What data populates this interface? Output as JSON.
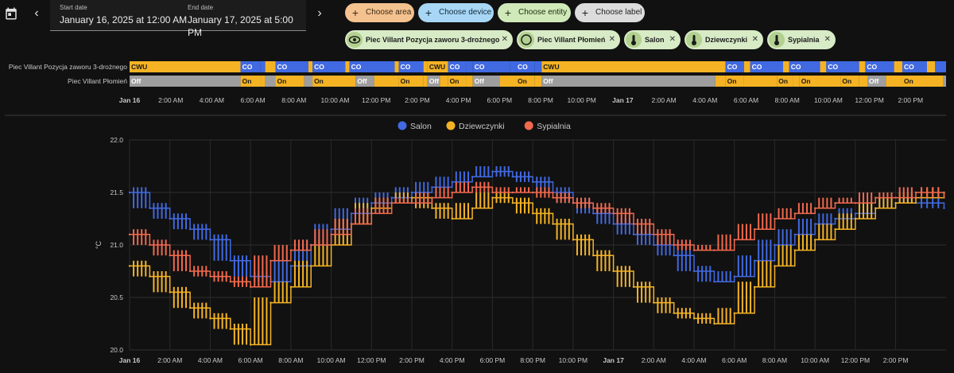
{
  "header": {
    "start_label": "Start date",
    "start_value": "January 16, 2025 at 12:00 AM",
    "end_label": "End date",
    "end_value": "January 17, 2025 at 5:00 PM"
  },
  "filters": {
    "area": "Choose area",
    "device": "Choose device",
    "entity": "Choose entity",
    "label": "Choose label"
  },
  "entities": [
    {
      "label": "Piec Villant Pozycja zaworu 3-drożnego",
      "icon": "eye-icon"
    },
    {
      "label": "Piec Villant Płomień",
      "icon": "circle-icon"
    },
    {
      "label": "Salon",
      "icon": "thermometer-icon"
    },
    {
      "label": "Dziewczynki",
      "icon": "thermometer-icon"
    },
    {
      "label": "Sypialnia",
      "icon": "thermometer-icon"
    }
  ],
  "colors": {
    "blue": "#4169e1",
    "yellow": "#f5b324",
    "red": "#f2694d",
    "gray": "#9e9e9e",
    "chip_area": "#f4c28f",
    "chip_device": "#a8d7f5",
    "chip_entity": "#cfe9b8",
    "chip_label": "#dcdcdc"
  },
  "timeline": {
    "time_labels": [
      "Jan 16",
      "2:00 AM",
      "4:00 AM",
      "6:00 AM",
      "8:00 AM",
      "10:00 AM",
      "12:00 PM",
      "2:00 PM",
      "4:00 PM",
      "6:00 PM",
      "8:00 PM",
      "10:00 PM",
      "Jan 17",
      "2:00 AM",
      "4:00 AM",
      "6:00 AM",
      "8:00 AM",
      "10:00 AM",
      "12:00 PM",
      "2:00 PM"
    ],
    "rows": [
      {
        "name": "Piec Villant Pozycja zaworu 3-drożnego",
        "segments": [
          {
            "start": 0,
            "end": 5.4,
            "state": "CWU"
          },
          {
            "start": 5.4,
            "end": 6.35,
            "state": "CO"
          },
          {
            "start": 6.35,
            "end": 6.6,
            "state": ""
          },
          {
            "start": 6.6,
            "end": 7.1,
            "state": ""
          },
          {
            "start": 7.1,
            "end": 8.7,
            "state": "CO"
          },
          {
            "start": 8.7,
            "end": 8.9,
            "state": ""
          },
          {
            "start": 8.9,
            "end": 10.5,
            "state": "CO"
          },
          {
            "start": 10.5,
            "end": 10.7,
            "state": ""
          },
          {
            "start": 10.7,
            "end": 12.9,
            "state": "CO"
          },
          {
            "start": 12.9,
            "end": 13.1,
            "state": ""
          },
          {
            "start": 13.1,
            "end": 14.3,
            "state": "CO"
          },
          {
            "start": 14.3,
            "end": 14.5,
            "state": ""
          },
          {
            "start": 14.5,
            "end": 15.5,
            "state": "CWU"
          },
          {
            "start": 15.5,
            "end": 16.4,
            "state": "CO"
          },
          {
            "start": 16.4,
            "end": 16.7,
            "state": ""
          },
          {
            "start": 16.7,
            "end": 18.5,
            "state": "CO"
          },
          {
            "start": 18.5,
            "end": 18.8,
            "state": ""
          },
          {
            "start": 18.8,
            "end": 19.7,
            "state": "CO"
          },
          {
            "start": 19.7,
            "end": 20.05,
            "state": ""
          },
          {
            "start": 20.05,
            "end": 29.0,
            "state": "CWU"
          },
          {
            "start": 29.0,
            "end": 29.9,
            "state": "CO"
          },
          {
            "start": 29.9,
            "end": 30.2,
            "state": ""
          },
          {
            "start": 30.2,
            "end": 31.8,
            "state": "CO"
          },
          {
            "start": 31.8,
            "end": 32.1,
            "state": ""
          },
          {
            "start": 32.1,
            "end": 33.6,
            "state": "CO"
          },
          {
            "start": 33.6,
            "end": 33.9,
            "state": ""
          },
          {
            "start": 33.9,
            "end": 35.5,
            "state": "CO"
          },
          {
            "start": 35.5,
            "end": 35.8,
            "state": ""
          },
          {
            "start": 35.8,
            "end": 37.2,
            "state": "CO"
          },
          {
            "start": 37.2,
            "end": 37.6,
            "state": ""
          },
          {
            "start": 37.6,
            "end": 38.8,
            "state": "CO"
          },
          {
            "start": 38.8,
            "end": 39.2,
            "state": ""
          },
          {
            "start": 39.2,
            "end": 40.0,
            "state": "CO"
          }
        ]
      },
      {
        "name": "Piec Villant Płomień",
        "segments": [
          {
            "start": 0,
            "end": 5.4,
            "state": "Off"
          },
          {
            "start": 5.4,
            "end": 6.4,
            "state": "On"
          },
          {
            "start": 6.4,
            "end": 6.6,
            "state": ""
          },
          {
            "start": 6.6,
            "end": 7.1,
            "state": ""
          },
          {
            "start": 7.1,
            "end": 8.5,
            "state": "On"
          },
          {
            "start": 8.5,
            "end": 8.9,
            "state": ""
          },
          {
            "start": 8.9,
            "end": 11.0,
            "state": "On"
          },
          {
            "start": 11.0,
            "end": 11.9,
            "state": "Off"
          },
          {
            "start": 11.9,
            "end": 13.1,
            "state": ""
          },
          {
            "start": 13.1,
            "end": 14.3,
            "state": "On"
          },
          {
            "start": 14.3,
            "end": 14.5,
            "state": ""
          },
          {
            "start": 14.5,
            "end": 15.1,
            "state": "Off"
          },
          {
            "start": 15.1,
            "end": 15.5,
            "state": ""
          },
          {
            "start": 15.5,
            "end": 16.4,
            "state": "On"
          },
          {
            "start": 16.4,
            "end": 16.7,
            "state": ""
          },
          {
            "start": 16.7,
            "end": 18.0,
            "state": "Off"
          },
          {
            "start": 18.0,
            "end": 18.8,
            "state": ""
          },
          {
            "start": 18.8,
            "end": 19.7,
            "state": "On"
          },
          {
            "start": 19.7,
            "end": 20.05,
            "state": ""
          },
          {
            "start": 20.05,
            "end": 28.5,
            "state": "Off"
          },
          {
            "start": 28.5,
            "end": 29.0,
            "state": ""
          },
          {
            "start": 29.0,
            "end": 29.9,
            "state": "On"
          },
          {
            "start": 29.9,
            "end": 31.5,
            "state": ""
          },
          {
            "start": 31.5,
            "end": 32.3,
            "state": "On"
          },
          {
            "start": 32.3,
            "end": 32.6,
            "state": ""
          },
          {
            "start": 32.6,
            "end": 33.5,
            "state": "On"
          },
          {
            "start": 33.5,
            "end": 34.6,
            "state": ""
          },
          {
            "start": 34.6,
            "end": 35.5,
            "state": "On"
          },
          {
            "start": 35.5,
            "end": 35.9,
            "state": ""
          },
          {
            "start": 35.9,
            "end": 36.8,
            "state": "Off"
          },
          {
            "start": 36.8,
            "end": 37.6,
            "state": ""
          },
          {
            "start": 37.6,
            "end": 38.8,
            "state": "On"
          },
          {
            "start": 38.8,
            "end": 39.6,
            "state": ""
          },
          {
            "start": 39.6,
            "end": 40.0,
            "state": ""
          }
        ]
      }
    ]
  },
  "chart_data": {
    "type": "line",
    "title": "",
    "ylabel": "°C",
    "xlabel": "",
    "ylim": [
      20.0,
      22.0
    ],
    "yticks": [
      "22.0",
      "21.5",
      "21.0",
      "20.5",
      "20.0"
    ],
    "x_tick_labels": [
      "Jan 16",
      "2:00 AM",
      "4:00 AM",
      "6:00 AM",
      "8:00 AM",
      "10:00 AM",
      "12:00 PM",
      "2:00 PM",
      "4:00 PM",
      "6:00 PM",
      "8:00 PM",
      "10:00 PM",
      "Jan 17",
      "2:00 AM",
      "4:00 AM",
      "6:00 AM",
      "8:00 AM",
      "10:00 AM",
      "12:00 PM",
      "2:00 PM"
    ],
    "xlim_hours": [
      0,
      40.5
    ],
    "legend_position": "top-center",
    "grid": true,
    "series": [
      {
        "name": "Salon",
        "color": "#4169e1",
        "x": [
          0,
          1,
          2,
          3,
          4,
          5,
          6,
          7,
          8,
          9,
          10,
          11,
          12,
          13,
          14,
          15,
          16,
          17,
          18,
          19,
          20,
          21,
          22,
          23,
          24,
          25,
          26,
          27,
          28,
          29,
          30,
          31,
          32,
          33,
          34,
          35,
          36,
          37,
          38,
          39,
          40.4
        ],
        "y": [
          21.5,
          21.35,
          21.25,
          21.15,
          21.05,
          20.85,
          20.7,
          20.65,
          20.8,
          21.0,
          21.15,
          21.3,
          21.4,
          21.45,
          21.5,
          21.55,
          21.6,
          21.65,
          21.7,
          21.65,
          21.6,
          21.5,
          21.4,
          21.3,
          21.2,
          21.1,
          21.0,
          20.9,
          20.75,
          20.65,
          20.7,
          20.85,
          21.0,
          21.1,
          21.2,
          21.25,
          21.3,
          21.35,
          21.4,
          21.4,
          21.35
        ]
      },
      {
        "name": "Dziewczynki",
        "color": "#f5b324",
        "x": [
          0,
          1,
          2,
          3,
          4,
          5,
          6,
          7,
          8,
          9,
          10,
          11,
          12,
          13,
          14,
          15,
          16,
          17,
          18,
          19,
          20,
          21,
          22,
          23,
          24,
          25,
          26,
          27,
          28,
          29,
          30,
          31,
          32,
          33,
          34,
          35,
          36,
          37,
          38,
          39,
          40.4
        ],
        "y": [
          20.8,
          20.7,
          20.55,
          20.4,
          20.3,
          20.2,
          20.05,
          20.45,
          20.6,
          20.8,
          21.0,
          21.2,
          21.35,
          21.4,
          21.45,
          21.35,
          21.25,
          21.35,
          21.45,
          21.4,
          21.3,
          21.2,
          21.05,
          20.9,
          20.75,
          20.6,
          20.45,
          20.35,
          20.3,
          20.25,
          20.35,
          20.6,
          20.8,
          20.95,
          21.05,
          21.15,
          21.25,
          21.35,
          21.4,
          21.45,
          21.5
        ]
      },
      {
        "name": "Sypialnia",
        "color": "#f2694d",
        "x": [
          0,
          1,
          2,
          3,
          4,
          5,
          6,
          7,
          8,
          9,
          10,
          11,
          12,
          13,
          14,
          15,
          16,
          17,
          18,
          19,
          20,
          21,
          22,
          23,
          24,
          25,
          26,
          27,
          28,
          29,
          30,
          31,
          32,
          33,
          34,
          35,
          36,
          37,
          38,
          39,
          40.4
        ],
        "y": [
          21.1,
          21.0,
          20.9,
          20.75,
          20.7,
          20.65,
          20.6,
          20.85,
          20.95,
          21.0,
          21.1,
          21.2,
          21.3,
          21.4,
          21.4,
          21.45,
          21.5,
          21.55,
          21.5,
          21.5,
          21.5,
          21.45,
          21.4,
          21.35,
          21.3,
          21.2,
          21.1,
          21.0,
          20.95,
          20.95,
          21.05,
          21.15,
          21.25,
          21.3,
          21.35,
          21.4,
          21.4,
          21.45,
          21.45,
          21.5,
          21.45
        ]
      }
    ]
  }
}
